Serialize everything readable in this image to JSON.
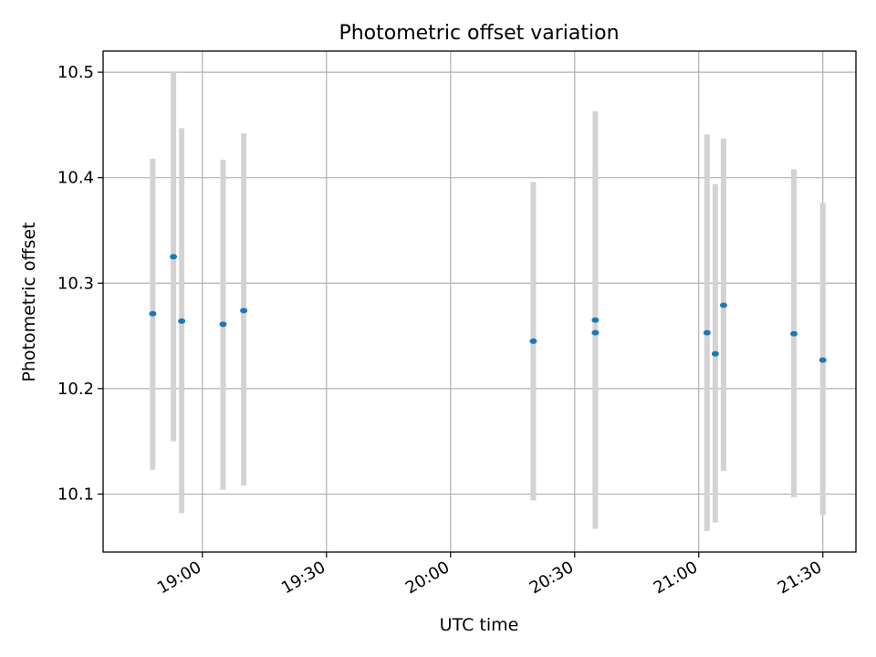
{
  "chart_data": {
    "type": "scatter",
    "title": "Photometric offset variation",
    "xlabel": "UTC time",
    "ylabel": "Photometric offset",
    "x_axis_type": "time",
    "xlim": [
      "18:36",
      "21:38"
    ],
    "ylim": [
      10.045,
      10.52
    ],
    "x_ticks": [
      "19:00",
      "19:30",
      "20:00",
      "20:30",
      "21:00",
      "21:30"
    ],
    "y_ticks": [
      10.1,
      10.2,
      10.3,
      10.4,
      10.5
    ],
    "y_tick_labels": [
      "10.1",
      "10.2",
      "10.3",
      "10.4",
      "10.5"
    ],
    "grid": true,
    "marker_color": "#1f77b4",
    "errorbar_color": "#d3d3d3",
    "points": [
      {
        "time": "18:48",
        "y": 10.271,
        "y_low": 10.123,
        "y_high": 10.418
      },
      {
        "time": "18:53",
        "y": 10.325,
        "y_low": 10.15,
        "y_high": 10.5
      },
      {
        "time": "18:55",
        "y": 10.264,
        "y_low": 10.082,
        "y_high": 10.447
      },
      {
        "time": "19:05",
        "y": 10.261,
        "y_low": 10.104,
        "y_high": 10.417
      },
      {
        "time": "19:10",
        "y": 10.274,
        "y_low": 10.108,
        "y_high": 10.442
      },
      {
        "time": "20:20",
        "y": 10.245,
        "y_low": 10.094,
        "y_high": 10.396
      },
      {
        "time": "20:35",
        "y": 10.253,
        "y_low": 10.1,
        "y_high": 10.407
      },
      {
        "time": "20:35",
        "y": 10.265,
        "y_low": 10.067,
        "y_high": 10.463
      },
      {
        "time": "21:02",
        "y": 10.253,
        "y_low": 10.065,
        "y_high": 10.441
      },
      {
        "time": "21:04",
        "y": 10.233,
        "y_low": 10.073,
        "y_high": 10.394
      },
      {
        "time": "21:06",
        "y": 10.279,
        "y_low": 10.122,
        "y_high": 10.437
      },
      {
        "time": "21:23",
        "y": 10.252,
        "y_low": 10.097,
        "y_high": 10.408
      },
      {
        "time": "21:30",
        "y": 10.227,
        "y_low": 10.08,
        "y_high": 10.376
      }
    ]
  }
}
